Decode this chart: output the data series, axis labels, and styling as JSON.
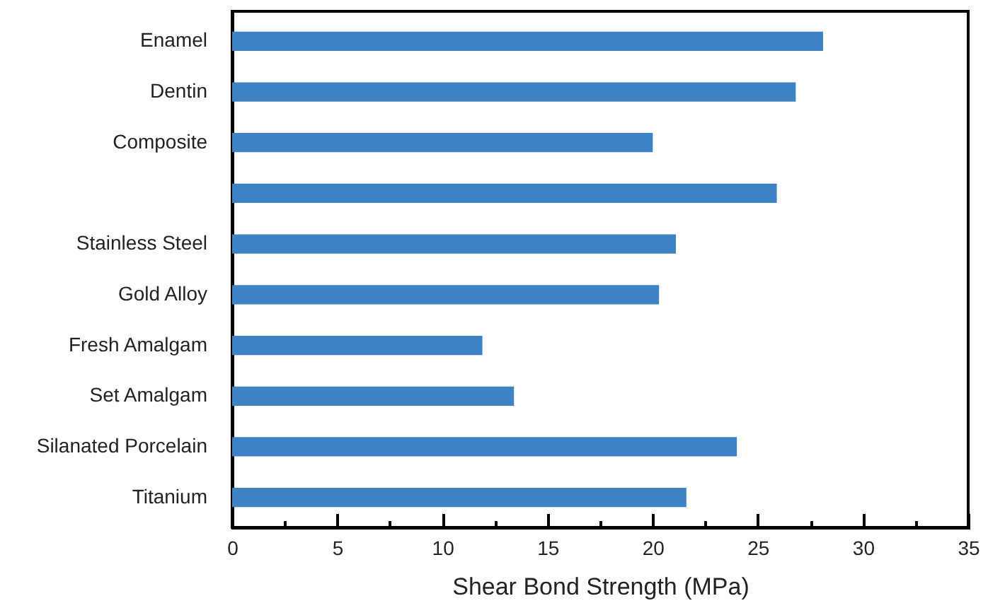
{
  "chart_data": {
    "type": "bar",
    "orientation": "horizontal",
    "xlabel": "Shear Bond Strength (MPa)",
    "categories": [
      "Enamel",
      "Dentin",
      "Composite",
      null,
      "Stainless Steel",
      "Gold Alloy",
      "Fresh Amalgam",
      "Set Amalgam",
      "Silanated Porcelain",
      "Titanium"
    ],
    "values": [
      28.1,
      26.8,
      20.0,
      25.9,
      21.1,
      20.3,
      11.9,
      13.4,
      24.0,
      21.6
    ],
    "color": "#3d82c4",
    "xlim": [
      0,
      35
    ],
    "xticks": [
      0,
      {
        "value": 2.5,
        "label": null
      },
      5,
      {
        "value": 7.5,
        "label": null
      },
      10,
      {
        "value": 12.5,
        "label": null
      },
      15,
      {
        "value": 17.5,
        "label": null
      },
      20,
      {
        "value": 22.5,
        "label": null
      },
      25,
      {
        "value": 27.5,
        "label": null
      },
      30,
      {
        "value": 32.5,
        "label": null
      },
      35
    ],
    "grid": false
  }
}
